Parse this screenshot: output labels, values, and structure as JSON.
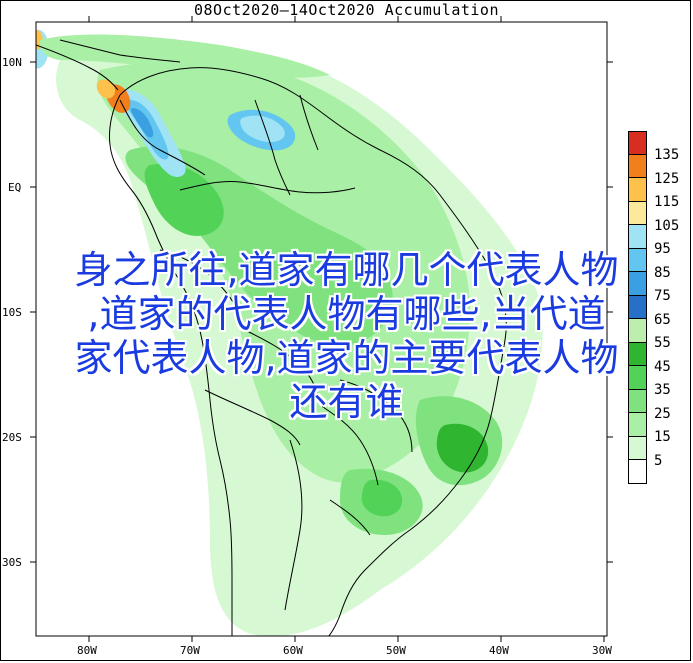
{
  "title": "08Oct2020—14Oct2020 Accumulation",
  "overlay_lines": [
    "身之所往,道家有哪几个代表人物",
    ",道家的代表人物有哪些,当代道",
    "家代表人物,道家的主要代表人物",
    "还有谁"
  ],
  "lat_labels": [
    "10N",
    "EQ",
    "10S",
    "20S",
    "30S"
  ],
  "lon_labels": [
    "80W",
    "70W",
    "60W",
    "50W",
    "40W",
    "30W"
  ],
  "legend": {
    "colors": [
      "#d82e22",
      "#f07f1c",
      "#fdc14c",
      "#fde99b",
      "#a0e3f5",
      "#62c6f0",
      "#3aa0e1",
      "#2670c8",
      "#bcefae",
      "#30b531",
      "#52d257",
      "#7fe27f",
      "#a9efa5",
      "#d6f8d2",
      "#ffffff"
    ],
    "labels": [
      "135",
      "125",
      "115",
      "105",
      "95",
      "85",
      "75",
      "65",
      "55",
      "45",
      "35",
      "25",
      "15",
      "5"
    ]
  }
}
